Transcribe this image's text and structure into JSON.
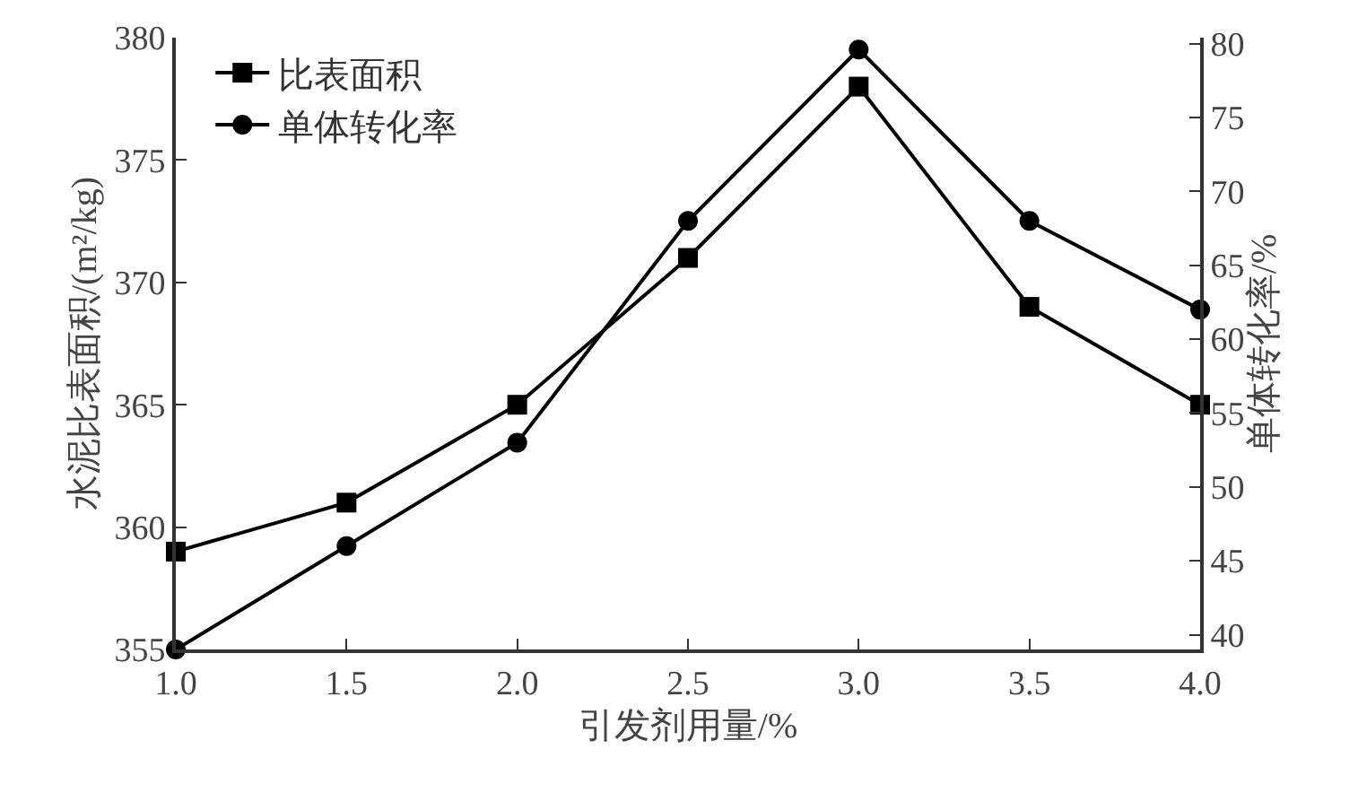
{
  "chart_data": {
    "type": "line",
    "xlabel": "引发剂用量/%",
    "ylabel": "水泥比表面积/(m²/kg)",
    "y2label": "单体转化率/%",
    "x": [
      1.0,
      1.5,
      2.0,
      2.5,
      3.0,
      3.5,
      4.0
    ],
    "series": [
      {
        "name": "比表面积",
        "color": "#000000",
        "marker": "square",
        "values": [
          359,
          361,
          365,
          371,
          378,
          369,
          365
        ]
      },
      {
        "name": "单体转化率",
        "color": "#000000",
        "marker": "circle",
        "axis": "y2",
        "values": [
          39,
          46,
          53,
          68,
          79.6,
          68,
          62
        ]
      }
    ],
    "xlim": [
      1,
      4
    ],
    "xticks": [
      {
        "value": 1,
        "label": "1.0"
      },
      {
        "value": 1.5,
        "label": "1.5"
      },
      {
        "value": 2,
        "label": "2.0"
      },
      {
        "value": 2.5,
        "label": "2.5"
      },
      {
        "value": 3,
        "label": "3.0"
      },
      {
        "value": 3.5,
        "label": "3.5"
      },
      {
        "value": 4,
        "label": "4.0"
      }
    ],
    "ylim": [
      355,
      380
    ],
    "yticks": [
      355,
      360,
      365,
      370,
      375,
      380
    ],
    "y2lim": [
      39,
      80.4
    ],
    "y2ticks": [
      40,
      45,
      50,
      55,
      60,
      65,
      70,
      75,
      80
    ],
    "legend": "top left",
    "grid": false,
    "line_style": "solid"
  }
}
